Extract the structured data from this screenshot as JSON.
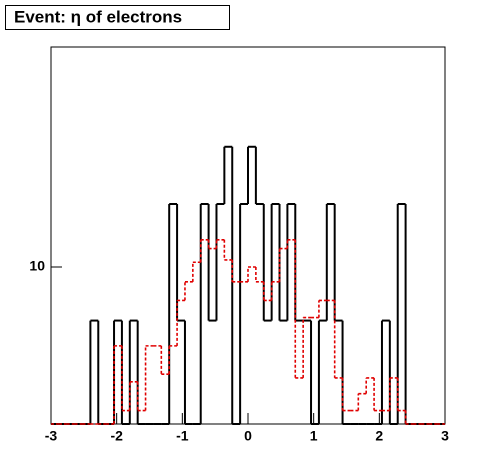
{
  "chart_data": {
    "type": "histogram",
    "title": "Event: η of electrons",
    "bins": [
      -3,
      -2.88,
      -2.76,
      -2.64,
      -2.52,
      -2.4,
      -2.28,
      -2.16,
      -2.04,
      -1.92,
      -1.8,
      -1.68,
      -1.56,
      -1.44,
      -1.32,
      -1.2,
      -1.08,
      -0.96,
      -0.84,
      -0.72,
      -0.6,
      -0.48,
      -0.36,
      -0.24,
      -0.12,
      0,
      0.12,
      0.24,
      0.36,
      0.48,
      0.6,
      0.72,
      0.84,
      0.96,
      1.08,
      1.2,
      1.32,
      1.44,
      1.56,
      1.68,
      1.8,
      1.92,
      2.04,
      2.16,
      2.28,
      2.4,
      2.52,
      2.64,
      2.76,
      2.88,
      3
    ],
    "series": [
      {
        "color": "#000000",
        "line_style": "solid",
        "values": [
          0,
          0,
          0,
          0,
          0,
          8,
          0,
          0,
          8,
          0,
          8,
          0,
          0,
          0,
          0,
          13,
          8,
          0,
          0,
          13,
          8,
          13,
          16.5,
          0,
          13,
          16.5,
          13,
          8,
          13,
          8,
          13,
          8,
          8,
          0,
          8,
          13,
          8,
          0,
          0,
          0,
          0,
          0,
          8,
          0,
          13,
          0,
          0,
          0,
          0,
          0
        ]
      },
      {
        "color": "#e00000",
        "line_style": "dashed",
        "values": [
          0,
          0,
          0,
          0,
          0,
          0,
          0,
          0,
          7.2,
          5.5,
          6.2,
          5.5,
          7.2,
          7.2,
          6.4,
          7.2,
          8.7,
          9.4,
          10.2,
          11.2,
          10.8,
          11.2,
          10.3,
          9.4,
          9.4,
          10,
          9.4,
          8.7,
          9.4,
          10.8,
          11.2,
          6.3,
          8.1,
          8.1,
          8.7,
          8.7,
          6.3,
          5.5,
          5.5,
          5.9,
          6.3,
          5.5,
          5.5,
          6.3,
          5.5,
          0,
          0,
          0,
          0,
          0
        ]
      }
    ],
    "xlim": [
      -3,
      3
    ],
    "xticks": [
      -3,
      -2,
      -1,
      0,
      1,
      2,
      3
    ],
    "ylim": [
      5.2,
      25
    ],
    "yticks": [
      10
    ],
    "log_y": true
  }
}
